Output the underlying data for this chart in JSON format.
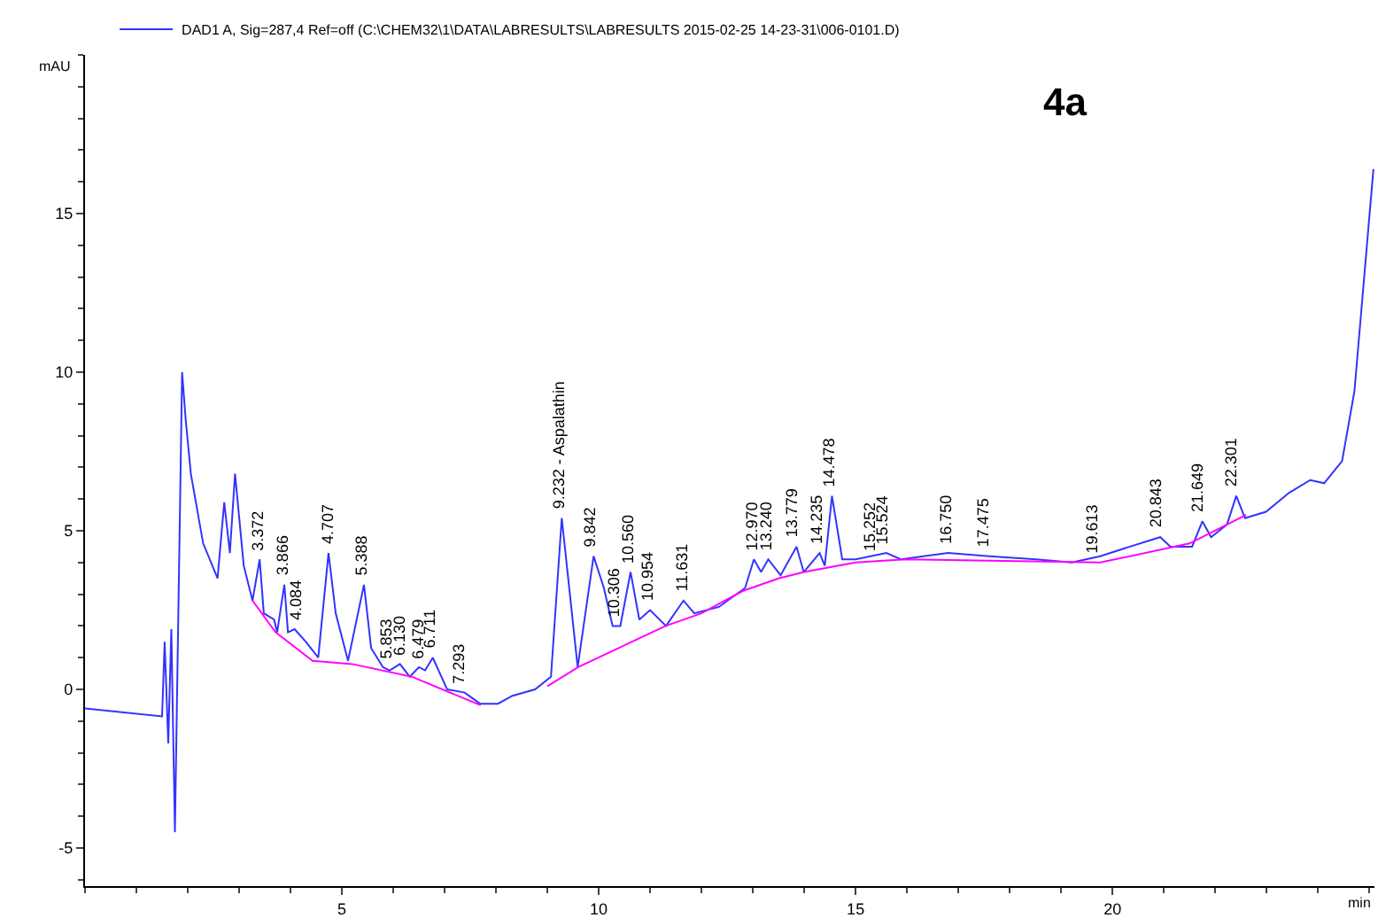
{
  "chart_data": {
    "type": "line",
    "title": "4a",
    "xlabel": "min",
    "ylabel": "mAU",
    "xlim": [
      0,
      25.1
    ],
    "ylim": [
      -6.2,
      20
    ],
    "xticks": [
      5,
      10,
      15,
      20
    ],
    "yticks": [
      -5,
      0,
      5,
      10,
      15
    ],
    "grid": false,
    "legend": "top left",
    "marker": "none",
    "line_style": "solid",
    "series": [
      {
        "name": "DAD1 A, Sig=287,4 Ref=off (C:\\CHEM32\\1\\DATA\\LABRESULTS\\LABRESULTS 2015-02-25 14-23-31\\006-0101.D)",
        "color": "#3333ff",
        "x": [
          0,
          1.5,
          1.55,
          1.62,
          1.68,
          1.75,
          1.89,
          1.96,
          2.06,
          2.3,
          2.58,
          2.71,
          2.82,
          2.92,
          3.09,
          3.26,
          3.4,
          3.48,
          3.68,
          3.74,
          3.88,
          3.95,
          4.08,
          4.3,
          4.54,
          4.74,
          4.88,
          5.12,
          5.43,
          5.57,
          5.8,
          5.93,
          6.13,
          6.32,
          6.5,
          6.62,
          6.77,
          7.05,
          7.39,
          7.69,
          8.04,
          8.32,
          8.76,
          9.07,
          9.28,
          9.59,
          9.9,
          10.1,
          10.27,
          10.42,
          10.62,
          10.79,
          11.0,
          11.31,
          11.65,
          11.86,
          12.34,
          12.85,
          13.02,
          13.16,
          13.3,
          13.54,
          13.85,
          13.99,
          14.3,
          14.4,
          14.54,
          14.74,
          15.0,
          15.6,
          15.88,
          16.8,
          17.6,
          18.52,
          19.21,
          19.76,
          20.34,
          20.93,
          21.13,
          21.55,
          21.75,
          21.92,
          22.23,
          22.41,
          22.58,
          22.99,
          23.44,
          23.85,
          24.12,
          24.47,
          24.71,
          25.08
        ],
        "values": [
          -0.6,
          -0.85,
          1.5,
          -1.7,
          1.9,
          -4.5,
          10,
          8.5,
          6.8,
          4.6,
          3.5,
          5.9,
          4.3,
          6.8,
          3.9,
          2.8,
          4.1,
          2.4,
          2.2,
          1.8,
          3.3,
          1.8,
          1.9,
          1.5,
          1.0,
          4.3,
          2.4,
          0.9,
          3.3,
          1.3,
          0.7,
          0.6,
          0.8,
          0.4,
          0.7,
          0.6,
          1.0,
          0.0,
          -0.1,
          -0.45,
          -0.45,
          -0.2,
          0.0,
          0.4,
          5.4,
          0.7,
          4.2,
          3.2,
          2.0,
          2.0,
          3.7,
          2.2,
          2.5,
          2.0,
          2.8,
          2.4,
          2.6,
          3.2,
          4.1,
          3.7,
          4.1,
          3.6,
          4.5,
          3.7,
          4.3,
          3.9,
          6.1,
          4.1,
          4.1,
          4.3,
          4.1,
          4.3,
          4.2,
          4.1,
          4.0,
          4.2,
          4.5,
          4.8,
          4.5,
          4.5,
          5.3,
          4.8,
          5.2,
          6.1,
          5.4,
          5.6,
          6.2,
          6.6,
          6.5,
          7.2,
          9.4,
          16.4
        ]
      },
      {
        "color": "#ff00ff",
        "x": [
          3.26,
          3.71,
          4.43,
          5.2,
          6.36,
          7.18,
          7.7,
          8.5,
          9.0,
          9.6,
          11.3,
          12.0,
          12.8,
          13.5,
          14.0,
          15.0,
          16.0,
          19.76,
          21.5,
          22.6
        ],
        "values": [
          2.8,
          1.8,
          0.9,
          0.8,
          0.4,
          -0.15,
          -0.5,
          null,
          0.1,
          0.7,
          2.0,
          2.4,
          3.1,
          3.5,
          3.7,
          4.0,
          4.1,
          4.0,
          4.6,
          5.5
        ]
      }
    ],
    "annotations": [
      {
        "text": "3.372",
        "x": 3.372,
        "y": 4.1
      },
      {
        "text": "3.866",
        "x": 3.866,
        "y": 3.3
      },
      {
        "text": "4.084",
        "x": 4.084,
        "y": 1.9
      },
      {
        "text": "4.707",
        "x": 4.707,
        "y": 4.3
      },
      {
        "text": "5.388",
        "x": 5.388,
        "y": 3.3
      },
      {
        "text": "5.853",
        "x": 5.853,
        "y": 0.7
      },
      {
        "text": "6.130",
        "x": 6.13,
        "y": 0.8
      },
      {
        "text": "6.479",
        "x": 6.479,
        "y": 0.7
      },
      {
        "text": "6.711",
        "x": 6.711,
        "y": 1.0
      },
      {
        "text": "7.293",
        "x": 7.293,
        "y": -0.1
      },
      {
        "text": "9.232 - Aspalathin",
        "x": 9.232,
        "y": 5.4
      },
      {
        "text": "9.842",
        "x": 9.842,
        "y": 4.2
      },
      {
        "text": "10.306",
        "x": 10.306,
        "y": 2.0
      },
      {
        "text": "10.560",
        "x": 10.56,
        "y": 3.7
      },
      {
        "text": "10.954",
        "x": 10.954,
        "y": 2.5
      },
      {
        "text": "11.631",
        "x": 11.631,
        "y": 2.8
      },
      {
        "text": "12.970",
        "x": 12.97,
        "y": 4.1
      },
      {
        "text": "13.240",
        "x": 13.24,
        "y": 4.1
      },
      {
        "text": "13.779",
        "x": 13.779,
        "y": 4.5
      },
      {
        "text": "14.235",
        "x": 14.235,
        "y": 4.3
      },
      {
        "text": "14.478",
        "x": 14.478,
        "y": 6.1
      },
      {
        "text": "15.252",
        "x": 15.252,
        "y": 4.1
      },
      {
        "text": "15.524",
        "x": 15.524,
        "y": 4.3
      },
      {
        "text": "16.750",
        "x": 16.75,
        "y": 4.3
      },
      {
        "text": "17.475",
        "x": 17.475,
        "y": 4.2
      },
      {
        "text": "19.613",
        "x": 19.613,
        "y": 4.0
      },
      {
        "text": "20.843",
        "x": 20.843,
        "y": 4.8
      },
      {
        "text": "21.649",
        "x": 21.649,
        "y": 5.3
      },
      {
        "text": "22.301",
        "x": 22.301,
        "y": 6.1
      }
    ]
  }
}
